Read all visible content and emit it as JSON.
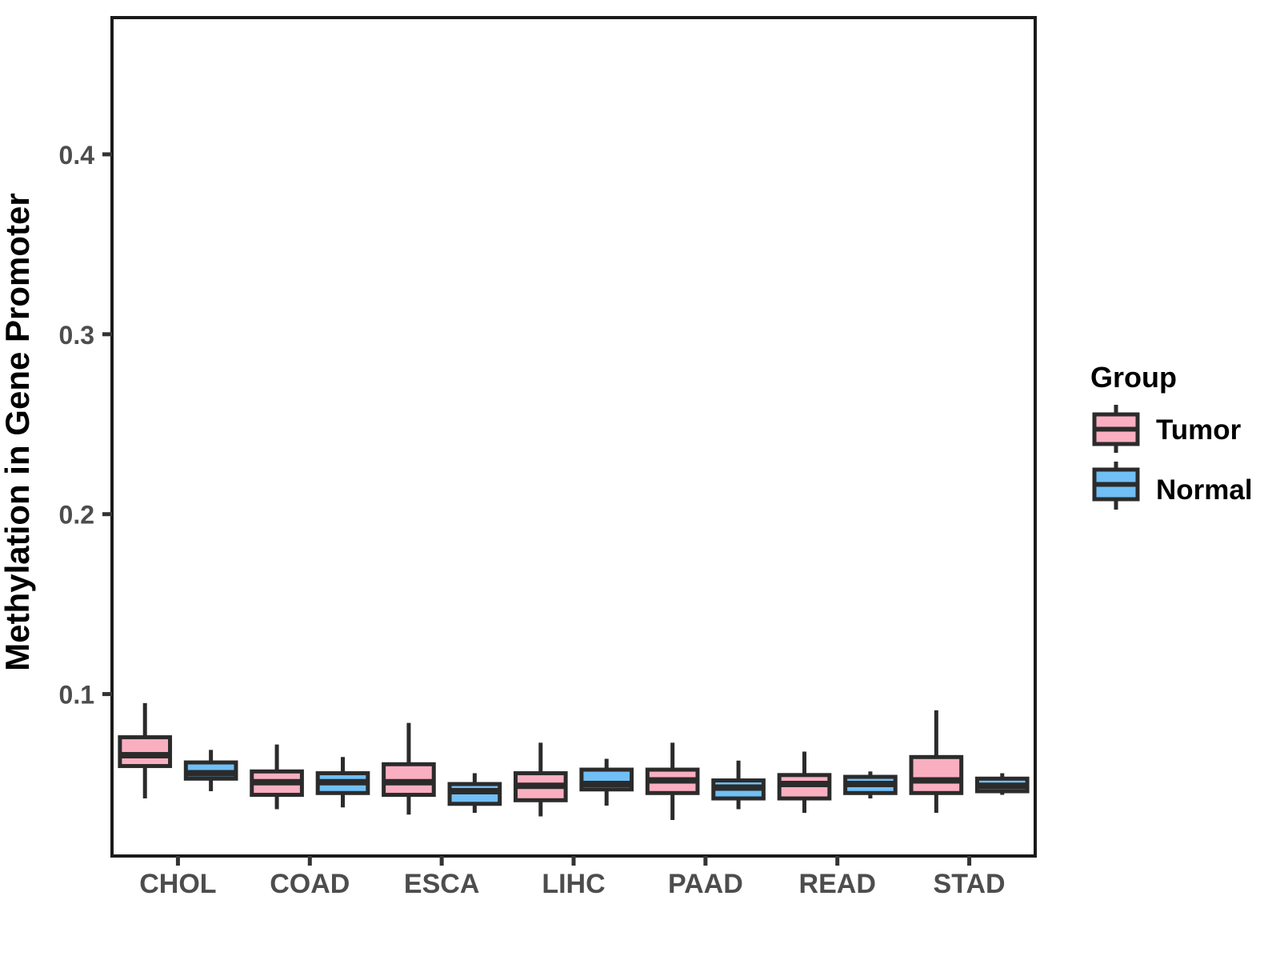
{
  "chart_data": {
    "type": "boxplot",
    "title": "",
    "xlabel": "",
    "ylabel": "Methylation in Gene Promoter",
    "categories": [
      "CHOL",
      "COAD",
      "ESCA",
      "LIHC",
      "PAAD",
      "READ",
      "STAD"
    ],
    "y_ticks": [
      0.1,
      0.2,
      0.3,
      0.4
    ],
    "ylim": [
      0.01,
      0.476
    ],
    "grid": false,
    "background": "#FFFFFF",
    "legend": {
      "title": "Group",
      "position": "right",
      "entries": [
        {
          "label": "Tumor",
          "color": "#FAAFC1"
        },
        {
          "label": "Normal",
          "color": "#70BFF6"
        }
      ]
    },
    "style": {
      "box_stroke": "#2B2B2B",
      "panel_border": "#1A1A1A",
      "tick_color": "#333333",
      "axis_text_color": "#4D4D4D",
      "title_text_color": "#000000"
    },
    "series": [
      {
        "name": "Tumor",
        "color": "#FAAFC1",
        "boxes": [
          {
            "category": "CHOL",
            "min": 0.042,
            "q1": 0.06,
            "median": 0.066,
            "q3": 0.076,
            "max": 0.095
          },
          {
            "category": "COAD",
            "min": 0.036,
            "q1": 0.044,
            "median": 0.051,
            "q3": 0.057,
            "max": 0.072
          },
          {
            "category": "ESCA",
            "min": 0.033,
            "q1": 0.044,
            "median": 0.051,
            "q3": 0.061,
            "max": 0.084
          },
          {
            "category": "LIHC",
            "min": 0.032,
            "q1": 0.041,
            "median": 0.049,
            "q3": 0.056,
            "max": 0.073
          },
          {
            "category": "PAAD",
            "min": 0.03,
            "q1": 0.045,
            "median": 0.052,
            "q3": 0.058,
            "max": 0.073
          },
          {
            "category": "READ",
            "min": 0.034,
            "q1": 0.042,
            "median": 0.05,
            "q3": 0.055,
            "max": 0.068
          },
          {
            "category": "STAD",
            "min": 0.034,
            "q1": 0.045,
            "median": 0.052,
            "q3": 0.065,
            "max": 0.091
          }
        ]
      },
      {
        "name": "Normal",
        "color": "#70BFF6",
        "boxes": [
          {
            "category": "CHOL",
            "min": 0.046,
            "q1": 0.053,
            "median": 0.056,
            "q3": 0.062,
            "max": 0.069
          },
          {
            "category": "COAD",
            "min": 0.037,
            "q1": 0.045,
            "median": 0.051,
            "q3": 0.056,
            "max": 0.065
          },
          {
            "category": "ESCA",
            "min": 0.034,
            "q1": 0.039,
            "median": 0.046,
            "q3": 0.05,
            "max": 0.056
          },
          {
            "category": "LIHC",
            "min": 0.038,
            "q1": 0.047,
            "median": 0.05,
            "q3": 0.058,
            "max": 0.064
          },
          {
            "category": "PAAD",
            "min": 0.036,
            "q1": 0.042,
            "median": 0.048,
            "q3": 0.052,
            "max": 0.063
          },
          {
            "category": "READ",
            "min": 0.042,
            "q1": 0.045,
            "median": 0.05,
            "q3": 0.054,
            "max": 0.057
          },
          {
            "category": "STAD",
            "min": 0.044,
            "q1": 0.046,
            "median": 0.049,
            "q3": 0.053,
            "max": 0.056
          }
        ]
      }
    ]
  }
}
